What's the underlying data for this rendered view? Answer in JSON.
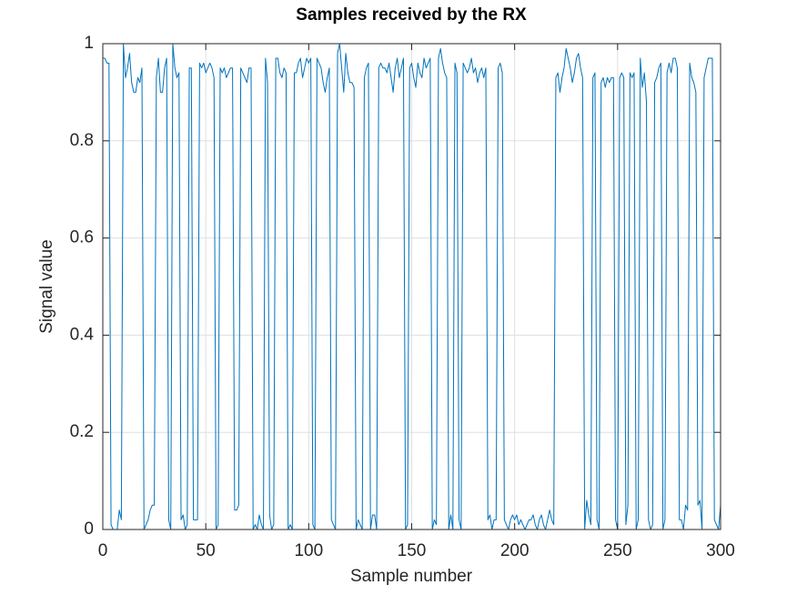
{
  "chart_data": {
    "type": "line",
    "title": "Samples received by the RX",
    "xlabel": "Sample number",
    "ylabel": "Signal value",
    "color": "#0072bd",
    "grid": true,
    "xlim": [
      0,
      300
    ],
    "xticks": [
      0,
      50,
      100,
      150,
      200,
      250,
      300
    ],
    "ylim": [
      0,
      1
    ],
    "yticks": [
      0,
      0.2,
      0.4,
      0.6,
      0.8,
      1
    ],
    "x": [
      0,
      1,
      2,
      3,
      4,
      5,
      6,
      7,
      8,
      9,
      10,
      11,
      12,
      13,
      14,
      15,
      16,
      17,
      18,
      19,
      20,
      21,
      22,
      23,
      24,
      25,
      26,
      27,
      28,
      29,
      30,
      31,
      32,
      33,
      34,
      35,
      36,
      37,
      38,
      39,
      40,
      41,
      42,
      43,
      44,
      45,
      46,
      47,
      48,
      49,
      50,
      51,
      52,
      53,
      54,
      55,
      56,
      57,
      58,
      59,
      60,
      61,
      62,
      63,
      64,
      65,
      66,
      67,
      68,
      69,
      70,
      71,
      72,
      73,
      74,
      75,
      76,
      77,
      78,
      79,
      80,
      81,
      82,
      83,
      84,
      85,
      86,
      87,
      88,
      89,
      90,
      91,
      92,
      93,
      94,
      95,
      96,
      97,
      98,
      99,
      100,
      101,
      102,
      103,
      104,
      105,
      106,
      107,
      108,
      109,
      110,
      111,
      112,
      113,
      114,
      115,
      116,
      117,
      118,
      119,
      120,
      121,
      122,
      123,
      124,
      125,
      126,
      127,
      128,
      129,
      130,
      131,
      132,
      133,
      134,
      135,
      136,
      137,
      138,
      139,
      140,
      141,
      142,
      143,
      144,
      145,
      146,
      147,
      148,
      149,
      150,
      151,
      152,
      153,
      154,
      155,
      156,
      157,
      158,
      159,
      160,
      161,
      162,
      163,
      164,
      165,
      166,
      167,
      168,
      169,
      170,
      171,
      172,
      173,
      174,
      175,
      176,
      177,
      178,
      179,
      180,
      181,
      182,
      183,
      184,
      185,
      186,
      187,
      188,
      189,
      190,
      191,
      192,
      193,
      194,
      195,
      196,
      197,
      198,
      199,
      200,
      201,
      202,
      203,
      204,
      205,
      206,
      207,
      208,
      209,
      210,
      211,
      212,
      213,
      214,
      215,
      216,
      217,
      218,
      219,
      220,
      221,
      222,
      223,
      224,
      225,
      226,
      227,
      228,
      229,
      230,
      231,
      232,
      233,
      234,
      235,
      236,
      237,
      238,
      239,
      240,
      241,
      242,
      243,
      244,
      245,
      246,
      247,
      248,
      249,
      250,
      251,
      252,
      253,
      254,
      255,
      256,
      257,
      258,
      259,
      260,
      261,
      262,
      263,
      264,
      265,
      266,
      267,
      268,
      269,
      270,
      271,
      272,
      273,
      274,
      275,
      276,
      277,
      278,
      279,
      280,
      281,
      282,
      283,
      284,
      285,
      286,
      287,
      288,
      289,
      290,
      291,
      292,
      293,
      294,
      295,
      296,
      297,
      298,
      299,
      300
    ],
    "values": [
      0.97,
      0.97,
      0.96,
      0.96,
      0.01,
      0.0,
      0.0,
      0.0,
      0.04,
      0.02,
      1.0,
      0.93,
      0.95,
      0.98,
      0.92,
      0.9,
      0.9,
      0.93,
      0.92,
      0.95,
      0.0,
      0.01,
      0.02,
      0.04,
      0.05,
      0.05,
      0.93,
      0.97,
      0.9,
      0.9,
      0.95,
      0.97,
      0.02,
      0.0,
      1.0,
      0.95,
      0.93,
      0.94,
      0.02,
      0.03,
      0.0,
      0.01,
      0.95,
      0.95,
      0.02,
      0.02,
      0.02,
      0.96,
      0.95,
      0.96,
      0.94,
      0.95,
      0.96,
      0.95,
      0.93,
      0.0,
      0.01,
      0.95,
      0.94,
      0.95,
      0.93,
      0.94,
      0.95,
      0.95,
      0.04,
      0.04,
      0.05,
      0.95,
      0.94,
      0.93,
      0.92,
      0.95,
      0.95,
      0.0,
      0.01,
      0.0,
      0.03,
      0.01,
      0.0,
      0.97,
      0.92,
      0.03,
      0.0,
      0.01,
      0.97,
      0.97,
      0.94,
      0.93,
      0.95,
      0.94,
      0.0,
      0.01,
      0.0,
      0.94,
      0.94,
      0.96,
      0.97,
      0.93,
      0.95,
      0.97,
      0.96,
      0.97,
      0.01,
      0.0,
      0.97,
      0.96,
      0.95,
      0.92,
      0.9,
      0.93,
      0.95,
      0.02,
      0.01,
      0.0,
      0.98,
      1.0,
      0.95,
      0.9,
      0.98,
      0.94,
      0.92,
      0.92,
      0.91,
      0.0,
      0.02,
      0.01,
      0.0,
      0.93,
      0.95,
      0.96,
      0.0,
      0.03,
      0.03,
      0.0,
      0.95,
      0.96,
      0.95,
      0.95,
      0.94,
      0.96,
      0.93,
      0.9,
      0.95,
      0.97,
      0.93,
      0.95,
      0.97,
      0.0,
      0.01,
      0.95,
      0.96,
      0.93,
      0.91,
      0.96,
      0.94,
      0.93,
      0.97,
      0.95,
      0.96,
      0.97,
      0.0,
      0.02,
      0.01,
      0.97,
      0.99,
      0.96,
      0.94,
      0.93,
      0.0,
      0.03,
      0.0,
      0.96,
      0.94,
      0.02,
      0.0,
      0.96,
      0.95,
      0.94,
      0.95,
      0.97,
      0.94,
      0.95,
      0.92,
      0.94,
      0.95,
      0.93,
      0.95,
      0.02,
      0.03,
      0.0,
      0.02,
      0.02,
      0.95,
      0.96,
      0.94,
      0.02,
      0.01,
      0.0,
      0.02,
      0.03,
      0.02,
      0.03,
      0.01,
      0.02,
      0.01,
      0.0,
      0.01,
      0.02,
      0.02,
      0.03,
      0.01,
      0.0,
      0.02,
      0.03,
      0.01,
      0.0,
      0.02,
      0.04,
      0.02,
      0.01,
      0.93,
      0.94,
      0.9,
      0.93,
      0.95,
      0.99,
      0.97,
      0.95,
      0.92,
      0.94,
      0.97,
      0.98,
      0.95,
      0.93,
      0.0,
      0.06,
      0.03,
      0.01,
      0.93,
      0.94,
      0.02,
      0.0,
      0.92,
      0.93,
      0.91,
      0.93,
      0.92,
      0.93,
      0.93,
      0.02,
      0.0,
      0.93,
      0.94,
      0.93,
      0.01,
      0.05,
      0.94,
      0.93,
      0.94,
      0.0,
      0.02,
      0.97,
      0.91,
      0.94,
      0.88,
      0.02,
      0.0,
      0.01,
      0.92,
      0.93,
      0.95,
      0.96,
      0.0,
      0.02,
      0.94,
      0.96,
      0.94,
      0.97,
      0.97,
      0.95,
      0.02,
      0.02,
      0.0,
      0.05,
      0.04,
      0.96,
      0.93,
      0.92,
      0.9,
      0.05,
      0.06,
      0.0,
      0.93,
      0.95,
      0.97,
      0.97,
      0.97,
      0.02,
      0.01,
      0.0,
      0.05
    ]
  }
}
